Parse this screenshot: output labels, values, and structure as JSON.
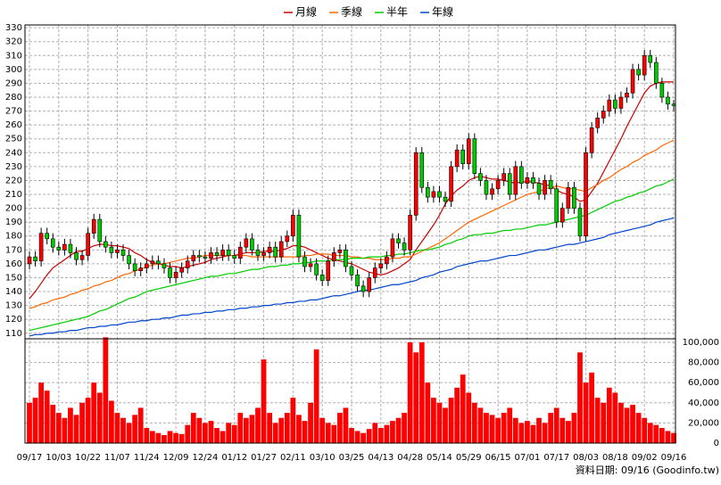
{
  "chart_data": {
    "type": "candlestick",
    "categories": [
      "09/17",
      null,
      null,
      null,
      null,
      "10/03",
      null,
      null,
      null,
      null,
      "10/22",
      null,
      null,
      null,
      null,
      "11/07",
      null,
      null,
      null,
      null,
      "11/24",
      null,
      null,
      null,
      null,
      "12/09",
      null,
      null,
      null,
      null,
      "12/24",
      null,
      null,
      null,
      null,
      "01/12",
      null,
      null,
      null,
      null,
      "01/27",
      null,
      null,
      null,
      null,
      "02/11",
      null,
      null,
      null,
      null,
      "03/10",
      null,
      null,
      null,
      null,
      "03/25",
      null,
      null,
      null,
      null,
      "04/13",
      null,
      null,
      null,
      null,
      "04/28",
      null,
      null,
      null,
      null,
      "05/14",
      null,
      null,
      null,
      null,
      "05/29",
      null,
      null,
      null,
      null,
      "06/15",
      null,
      null,
      null,
      null,
      "07/01",
      null,
      null,
      null,
      null,
      "07/17",
      null,
      null,
      null,
      null,
      "08/03",
      null,
      null,
      null,
      null,
      "08/18",
      null,
      null,
      null,
      null,
      "09/02",
      null,
      null,
      null,
      null,
      "09/16"
    ],
    "open": [
      160,
      165,
      162,
      182,
      178,
      172,
      170,
      174,
      168,
      163,
      166,
      182,
      192,
      176,
      172,
      168,
      170,
      166,
      160,
      155,
      157,
      160,
      162,
      160,
      157,
      150,
      154,
      157,
      162,
      166,
      165,
      164,
      168,
      166,
      170,
      166,
      164,
      172,
      178,
      170,
      166,
      168,
      172,
      165,
      176,
      180,
      195,
      165,
      158,
      160,
      152,
      148,
      162,
      168,
      170,
      158,
      152,
      144,
      140,
      150,
      157,
      160,
      165,
      178,
      175,
      170,
      195,
      240,
      215,
      208,
      212,
      208,
      205,
      230,
      242,
      232,
      250,
      225,
      220,
      210,
      214,
      220,
      225,
      210,
      230,
      218,
      222,
      218,
      210,
      220,
      214,
      190,
      200,
      215,
      200,
      180,
      240,
      258,
      265,
      270,
      278,
      272,
      280,
      283,
      300,
      296,
      310,
      305,
      290,
      280,
      275
    ],
    "high": [
      169,
      169,
      186,
      186,
      182,
      176,
      178,
      178,
      172,
      170,
      186,
      196,
      196,
      180,
      176,
      174,
      174,
      170,
      164,
      161,
      164,
      166,
      166,
      164,
      161,
      158,
      161,
      166,
      170,
      170,
      169,
      172,
      172,
      174,
      174,
      170,
      176,
      182,
      182,
      174,
      172,
      176,
      176,
      180,
      184,
      199,
      199,
      169,
      164,
      164,
      156,
      166,
      172,
      174,
      174,
      162,
      156,
      148,
      154,
      161,
      164,
      169,
      182,
      182,
      179,
      199,
      244,
      244,
      219,
      216,
      216,
      212,
      234,
      246,
      246,
      254,
      254,
      229,
      224,
      218,
      224,
      229,
      229,
      234,
      234,
      226,
      226,
      222,
      224,
      224,
      218,
      204,
      219,
      219,
      204,
      244,
      262,
      269,
      274,
      282,
      282,
      284,
      287,
      304,
      304,
      314,
      314,
      309,
      294,
      284,
      278
    ],
    "low": [
      156,
      158,
      158,
      174,
      168,
      166,
      166,
      164,
      159,
      159,
      162,
      178,
      172,
      168,
      164,
      164,
      162,
      156,
      151,
      151,
      153,
      156,
      156,
      153,
      146,
      146,
      150,
      153,
      158,
      161,
      160,
      160,
      162,
      162,
      162,
      160,
      160,
      168,
      166,
      162,
      162,
      164,
      161,
      161,
      172,
      176,
      161,
      154,
      154,
      148,
      144,
      144,
      158,
      164,
      154,
      148,
      140,
      136,
      136,
      146,
      153,
      156,
      161,
      171,
      166,
      166,
      191,
      211,
      204,
      204,
      204,
      201,
      201,
      226,
      228,
      228,
      221,
      216,
      206,
      206,
      210,
      216,
      206,
      206,
      214,
      214,
      214,
      206,
      206,
      210,
      186,
      186,
      196,
      196,
      176,
      176,
      236,
      254,
      261,
      266,
      268,
      268,
      276,
      279,
      292,
      292,
      301,
      286,
      276,
      271,
      270
    ],
    "close": [
      165,
      162,
      182,
      178,
      172,
      170,
      174,
      168,
      163,
      166,
      182,
      192,
      176,
      172,
      168,
      170,
      166,
      160,
      155,
      157,
      160,
      162,
      160,
      157,
      150,
      154,
      157,
      162,
      166,
      165,
      164,
      168,
      166,
      170,
      166,
      164,
      172,
      178,
      170,
      166,
      168,
      172,
      165,
      176,
      180,
      195,
      165,
      158,
      160,
      152,
      148,
      162,
      168,
      170,
      158,
      152,
      144,
      140,
      150,
      157,
      160,
      165,
      178,
      175,
      170,
      195,
      240,
      215,
      208,
      212,
      208,
      205,
      230,
      242,
      232,
      250,
      225,
      220,
      210,
      214,
      220,
      225,
      210,
      230,
      218,
      222,
      218,
      210,
      220,
      214,
      190,
      200,
      215,
      200,
      180,
      240,
      258,
      265,
      270,
      278,
      272,
      280,
      283,
      300,
      296,
      310,
      305,
      290,
      280,
      275,
      274
    ],
    "up_color": "#ff0000",
    "down_color": "#00cc00",
    "series": [
      {
        "name": "月線",
        "color": "#cc0000",
        "values": [
          135,
          140,
          146,
          152,
          157,
          160,
          163,
          166,
          169,
          169,
          171,
          173,
          174,
          174,
          173,
          173,
          172,
          171,
          168,
          166,
          163,
          161,
          160,
          159,
          158,
          158,
          157,
          158,
          159,
          160,
          161,
          163,
          164,
          165,
          166,
          166,
          167,
          168,
          168,
          168,
          169,
          169,
          169,
          170,
          171,
          173,
          173,
          172,
          170,
          168,
          166,
          164,
          163,
          162,
          161,
          160,
          158,
          156,
          154,
          153,
          152,
          153,
          155,
          157,
          160,
          163,
          170,
          176,
          182,
          188,
          195,
          203,
          209,
          213,
          216,
          220,
          222,
          223,
          222,
          221,
          221,
          220,
          219,
          218,
          219,
          219,
          219,
          218,
          217,
          216,
          213,
          211,
          210,
          208,
          205,
          206,
          212,
          218,
          226,
          234,
          242,
          250,
          259,
          267,
          275,
          283,
          288,
          290,
          291,
          291,
          291
        ]
      },
      {
        "name": "季線",
        "color": "#ff6600",
        "values": [
          128,
          129,
          131,
          132,
          134,
          135,
          136,
          138,
          139,
          141,
          142,
          144,
          145,
          147,
          148,
          150,
          152,
          153,
          155,
          156,
          158,
          159,
          160,
          160,
          161,
          162,
          163,
          164,
          164,
          165,
          166,
          166,
          166,
          166,
          166,
          166,
          166,
          166,
          165,
          165,
          165,
          165,
          165,
          165,
          165,
          165,
          165,
          166,
          166,
          167,
          167,
          167,
          166,
          166,
          166,
          165,
          165,
          164,
          164,
          163,
          163,
          163,
          164,
          164,
          165,
          165,
          167,
          169,
          171,
          173,
          175,
          178,
          181,
          184,
          187,
          190,
          192,
          194,
          196,
          198,
          200,
          202,
          204,
          206,
          208,
          210,
          211,
          212,
          214,
          215,
          216,
          215,
          214,
          214,
          213,
          212,
          215,
          217,
          220,
          222,
          225,
          228,
          230,
          233,
          235,
          238,
          240,
          242,
          245,
          247,
          249
        ]
      },
      {
        "name": "半年",
        "color": "#00cc00",
        "values": [
          112,
          113,
          114,
          115,
          116,
          117,
          118,
          119,
          120,
          121,
          122,
          124,
          126,
          127,
          129,
          131,
          133,
          135,
          136,
          138,
          140,
          141,
          142,
          143,
          144,
          145,
          146,
          147,
          148,
          149,
          150,
          151,
          151,
          152,
          153,
          153,
          154,
          155,
          156,
          156,
          157,
          158,
          158,
          159,
          159,
          160,
          160,
          161,
          161,
          162,
          162,
          162,
          163,
          163,
          163,
          164,
          164,
          164,
          165,
          165,
          165,
          166,
          166,
          167,
          167,
          168,
          169,
          170,
          170,
          171,
          172,
          174,
          175,
          177,
          178,
          180,
          181,
          181,
          182,
          182,
          183,
          184,
          184,
          185,
          185,
          186,
          187,
          188,
          188,
          189,
          190,
          191,
          192,
          193,
          194,
          195,
          197,
          199,
          201,
          203,
          205,
          206,
          208,
          209,
          211,
          212,
          214,
          216,
          217,
          219,
          221
        ]
      },
      {
        "name": "年線",
        "color": "#0044cc",
        "values": [
          108,
          109,
          109,
          110,
          110,
          111,
          111,
          112,
          112,
          113,
          114,
          114,
          115,
          115,
          116,
          116,
          117,
          118,
          118,
          119,
          119,
          120,
          120,
          121,
          121,
          122,
          123,
          123,
          124,
          124,
          125,
          125,
          126,
          126,
          127,
          127,
          128,
          128,
          129,
          129,
          130,
          130,
          131,
          131,
          132,
          132,
          133,
          133,
          134,
          134,
          135,
          136,
          137,
          137,
          138,
          139,
          140,
          141,
          141,
          142,
          143,
          144,
          145,
          145,
          146,
          147,
          148,
          150,
          151,
          152,
          154,
          155,
          156,
          158,
          159,
          160,
          161,
          162,
          162,
          163,
          164,
          165,
          166,
          166,
          167,
          168,
          169,
          170,
          170,
          171,
          172,
          173,
          174,
          174,
          175,
          176,
          177,
          178,
          179,
          181,
          182,
          183,
          184,
          185,
          186,
          187,
          188,
          190,
          191,
          192,
          193
        ]
      }
    ],
    "volume": {
      "color": "#ff0000",
      "values": [
        40000,
        45000,
        60000,
        52000,
        38000,
        30000,
        25000,
        35000,
        28000,
        40000,
        45000,
        60000,
        50000,
        105000,
        42000,
        30000,
        25000,
        20000,
        28000,
        35000,
        15000,
        12000,
        10000,
        8000,
        12000,
        10000,
        9000,
        18000,
        30000,
        25000,
        20000,
        22000,
        15000,
        12000,
        20000,
        18000,
        30000,
        25000,
        28000,
        35000,
        83000,
        30000,
        20000,
        25000,
        30000,
        45000,
        28000,
        22000,
        40000,
        93000,
        25000,
        20000,
        18000,
        30000,
        35000,
        15000,
        12000,
        10000,
        14000,
        20000,
        15000,
        18000,
        22000,
        25000,
        30000,
        100000,
        90000,
        100000,
        60000,
        45000,
        40000,
        35000,
        45000,
        55000,
        68000,
        50000,
        40000,
        35000,
        30000,
        28000,
        25000,
        30000,
        35000,
        25000,
        20000,
        22000,
        18000,
        25000,
        20000,
        30000,
        35000,
        25000,
        22000,
        30000,
        90000,
        60000,
        70000,
        45000,
        40000,
        55000,
        50000,
        40000,
        35000,
        38000,
        30000,
        25000,
        20000,
        18000,
        15000,
        12000,
        10000
      ]
    },
    "ylim": [
      106,
      332
    ],
    "yticks": [
      110,
      120,
      130,
      140,
      150,
      160,
      170,
      180,
      190,
      200,
      210,
      220,
      230,
      240,
      250,
      260,
      270,
      280,
      290,
      300,
      310,
      320,
      330
    ],
    "y2lim": [
      0,
      103500
    ],
    "y2ticks": [
      0,
      {
        "value": 20000,
        "label": "20,000"
      },
      {
        "value": 40000,
        "label": "40,000"
      },
      {
        "value": 60000,
        "label": "60,000"
      },
      {
        "value": 80000,
        "label": "80,000"
      },
      {
        "value": 100000,
        "label": "100,000"
      }
    ],
    "grid": true,
    "footer": "資料日期: 09/16  (Goodinfo.tw)"
  }
}
